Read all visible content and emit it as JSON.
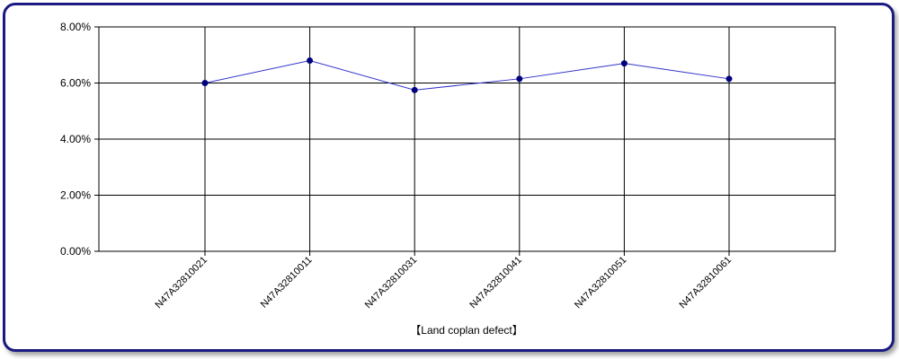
{
  "chart_data": {
    "type": "line",
    "categories": [
      "N47A32810021",
      "N47A32810011",
      "N47A32810031",
      "N47A32810041",
      "N47A32810051",
      "N47A32810061"
    ],
    "series": [
      {
        "values": [
          6.0,
          6.8,
          5.75,
          6.15,
          6.7,
          6.15
        ],
        "color": "#3333cc",
        "marker_color": "#00007f"
      }
    ],
    "ylim": [
      0,
      8
    ],
    "yticks": [
      "0.00%",
      "2.00%",
      "4.00%",
      "6.00%",
      "8.00%"
    ],
    "xlabel": "【Land coplan defect】",
    "grid": true
  }
}
